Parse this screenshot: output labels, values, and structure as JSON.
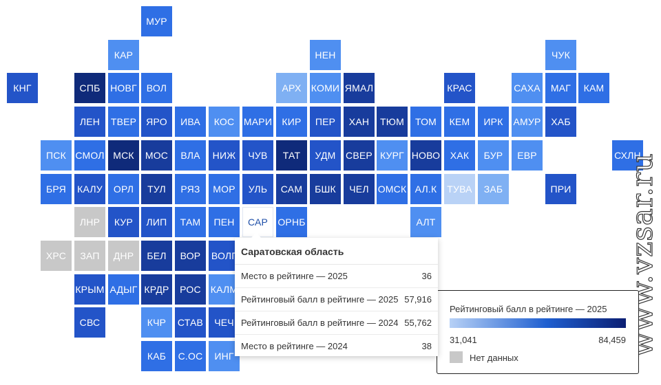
{
  "colors": {
    "nodata": "#c8c8c8",
    "scale": [
      "#b9d2f6",
      "#7fb0f3",
      "#4f8ff1",
      "#2f6fe5",
      "#2354c8",
      "#183c9c",
      "#0f2a7a"
    ]
  },
  "tiles": [
    {
      "label": "МУР",
      "col": 4,
      "row": 0,
      "shade": 3
    },
    {
      "label": "КАР",
      "col": 3,
      "row": 1,
      "shade": 2
    },
    {
      "label": "НЕН",
      "col": 9,
      "row": 1,
      "shade": 2
    },
    {
      "label": "ЧУК",
      "col": 16,
      "row": 1,
      "shade": 2
    },
    {
      "label": "КНГ",
      "col": 0,
      "row": 2,
      "shade": 4
    },
    {
      "label": "СПБ",
      "col": 2,
      "row": 2,
      "shade": 6
    },
    {
      "label": "НОВГ",
      "col": 3,
      "row": 2,
      "shade": 3
    },
    {
      "label": "ВОЛ",
      "col": 4,
      "row": 2,
      "shade": 3
    },
    {
      "label": "АРХ",
      "col": 8,
      "row": 2,
      "shade": 1
    },
    {
      "label": "КОМИ",
      "col": 9,
      "row": 2,
      "shade": 2
    },
    {
      "label": "ЯМАЛ",
      "col": 10,
      "row": 2,
      "shade": 5
    },
    {
      "label": "КРАС",
      "col": 13,
      "row": 2,
      "shade": 4
    },
    {
      "label": "САХА",
      "col": 15,
      "row": 2,
      "shade": 2
    },
    {
      "label": "МАГ",
      "col": 16,
      "row": 2,
      "shade": 3
    },
    {
      "label": "КАМ",
      "col": 17,
      "row": 2,
      "shade": 3
    },
    {
      "label": "ЛЕН",
      "col": 2,
      "row": 3,
      "shade": 4
    },
    {
      "label": "ТВЕР",
      "col": 3,
      "row": 3,
      "shade": 3
    },
    {
      "label": "ЯРО",
      "col": 4,
      "row": 3,
      "shade": 4
    },
    {
      "label": "ИВА",
      "col": 5,
      "row": 3,
      "shade": 3
    },
    {
      "label": "КОС",
      "col": 6,
      "row": 3,
      "shade": 2
    },
    {
      "label": "МАРИ",
      "col": 7,
      "row": 3,
      "shade": 3
    },
    {
      "label": "КИР",
      "col": 8,
      "row": 3,
      "shade": 3
    },
    {
      "label": "ПЕР",
      "col": 9,
      "row": 3,
      "shade": 4
    },
    {
      "label": "ХАН",
      "col": 10,
      "row": 3,
      "shade": 5
    },
    {
      "label": "ТЮМ",
      "col": 11,
      "row": 3,
      "shade": 5
    },
    {
      "label": "ТОМ",
      "col": 12,
      "row": 3,
      "shade": 3
    },
    {
      "label": "КЕМ",
      "col": 13,
      "row": 3,
      "shade": 3
    },
    {
      "label": "ИРК",
      "col": 14,
      "row": 3,
      "shade": 3
    },
    {
      "label": "АМУР",
      "col": 15,
      "row": 3,
      "shade": 2
    },
    {
      "label": "ХАБ",
      "col": 16,
      "row": 3,
      "shade": 4
    },
    {
      "label": "ПСК",
      "col": 1,
      "row": 4,
      "shade": 2
    },
    {
      "label": "СМОЛ",
      "col": 2,
      "row": 4,
      "shade": 3
    },
    {
      "label": "МСК",
      "col": 3,
      "row": 4,
      "shade": 6
    },
    {
      "label": "МОС",
      "col": 4,
      "row": 4,
      "shade": 5
    },
    {
      "label": "ВЛА",
      "col": 5,
      "row": 4,
      "shade": 3
    },
    {
      "label": "НИЖ",
      "col": 6,
      "row": 4,
      "shade": 4
    },
    {
      "label": "ЧУВ",
      "col": 7,
      "row": 4,
      "shade": 4
    },
    {
      "label": "ТАТ",
      "col": 8,
      "row": 4,
      "shade": 6
    },
    {
      "label": "УДМ",
      "col": 9,
      "row": 4,
      "shade": 4
    },
    {
      "label": "СВЕР",
      "col": 10,
      "row": 4,
      "shade": 5
    },
    {
      "label": "КУРГ",
      "col": 11,
      "row": 4,
      "shade": 2
    },
    {
      "label": "НОВО",
      "col": 12,
      "row": 4,
      "shade": 5
    },
    {
      "label": "ХАК",
      "col": 13,
      "row": 4,
      "shade": 3
    },
    {
      "label": "БУР",
      "col": 14,
      "row": 4,
      "shade": 2
    },
    {
      "label": "ЕВР",
      "col": 15,
      "row": 4,
      "shade": 2
    },
    {
      "label": "СХЛН",
      "col": 18,
      "row": 4,
      "shade": 3
    },
    {
      "label": "БРЯ",
      "col": 1,
      "row": 5,
      "shade": 3
    },
    {
      "label": "КАЛУ",
      "col": 2,
      "row": 5,
      "shade": 4
    },
    {
      "label": "ОРЛ",
      "col": 3,
      "row": 5,
      "shade": 3
    },
    {
      "label": "ТУЛ",
      "col": 4,
      "row": 5,
      "shade": 5
    },
    {
      "label": "РЯЗ",
      "col": 5,
      "row": 5,
      "shade": 3
    },
    {
      "label": "МОР",
      "col": 6,
      "row": 5,
      "shade": 3
    },
    {
      "label": "УЛЬ",
      "col": 7,
      "row": 5,
      "shade": 4
    },
    {
      "label": "САМ",
      "col": 8,
      "row": 5,
      "shade": 5
    },
    {
      "label": "БШК",
      "col": 9,
      "row": 5,
      "shade": 5
    },
    {
      "label": "ЧЕЛ",
      "col": 10,
      "row": 5,
      "shade": 5
    },
    {
      "label": "ОМСК",
      "col": 11,
      "row": 5,
      "shade": 3
    },
    {
      "label": "АЛ.К",
      "col": 12,
      "row": 5,
      "shade": 3
    },
    {
      "label": "ТУВА",
      "col": 13,
      "row": 5,
      "shade": 0
    },
    {
      "label": "ЗАБ",
      "col": 14,
      "row": 5,
      "shade": 1
    },
    {
      "label": "ПРИ",
      "col": 16,
      "row": 5,
      "shade": 4
    },
    {
      "label": "ЛНР",
      "col": 2,
      "row": 6,
      "shade": -1
    },
    {
      "label": "КУР",
      "col": 3,
      "row": 6,
      "shade": 4
    },
    {
      "label": "ЛИП",
      "col": 4,
      "row": 6,
      "shade": 4
    },
    {
      "label": "ТАМ",
      "col": 5,
      "row": 6,
      "shade": 3
    },
    {
      "label": "ПЕН",
      "col": 6,
      "row": 6,
      "shade": 3
    },
    {
      "label": "САР",
      "col": 7,
      "row": 6,
      "shade": 3,
      "active": true
    },
    {
      "label": "ОРНБ",
      "col": 8,
      "row": 6,
      "shade": 3
    },
    {
      "label": "АЛТ",
      "col": 12,
      "row": 6,
      "shade": 2
    },
    {
      "label": "ХРС",
      "col": 1,
      "row": 7,
      "shade": -1
    },
    {
      "label": "ЗАП",
      "col": 2,
      "row": 7,
      "shade": -1
    },
    {
      "label": "ДНР",
      "col": 3,
      "row": 7,
      "shade": -1
    },
    {
      "label": "БЕЛ",
      "col": 4,
      "row": 7,
      "shade": 5
    },
    {
      "label": "ВОР",
      "col": 5,
      "row": 7,
      "shade": 5
    },
    {
      "label": "ВОЛГ",
      "col": 6,
      "row": 7,
      "shade": 4
    },
    {
      "label": "КРЫМ",
      "col": 2,
      "row": 8,
      "shade": 4
    },
    {
      "label": "АДЫГ",
      "col": 3,
      "row": 8,
      "shade": 3
    },
    {
      "label": "КРДР",
      "col": 4,
      "row": 8,
      "shade": 5
    },
    {
      "label": "РОС",
      "col": 5,
      "row": 8,
      "shade": 5
    },
    {
      "label": "КАЛМ",
      "col": 6,
      "row": 8,
      "shade": 2
    },
    {
      "label": "СВС",
      "col": 2,
      "row": 9,
      "shade": 4
    },
    {
      "label": "КЧР",
      "col": 4,
      "row": 9,
      "shade": 2
    },
    {
      "label": "СТАВ",
      "col": 5,
      "row": 9,
      "shade": 4
    },
    {
      "label": "ЧЕЧ",
      "col": 6,
      "row": 9,
      "shade": 4
    },
    {
      "label": "КАБ",
      "col": 4,
      "row": 10,
      "shade": 3
    },
    {
      "label": "С.ОС",
      "col": 5,
      "row": 10,
      "shade": 3
    },
    {
      "label": "ИНГ",
      "col": 6,
      "row": 10,
      "shade": 2
    }
  ],
  "tooltip": {
    "title": "Саратовская область",
    "rows": [
      {
        "label": "Место в рейтинге — 2025",
        "value": "36"
      },
      {
        "label": "Рейтинговый балл в рейтинге — 2025",
        "value": "57,916"
      },
      {
        "label": "Рейтинговый балл в рейтинге — 2024",
        "value": "55,762"
      },
      {
        "label": "Место в рейтинге — 2024",
        "value": "38"
      }
    ]
  },
  "legend": {
    "title": "Рейтинговый балл в рейтинге — 2025",
    "min": "31,041",
    "max": "84,459",
    "nodata": "Нет данных"
  },
  "watermark": "www.vzsar.ru"
}
